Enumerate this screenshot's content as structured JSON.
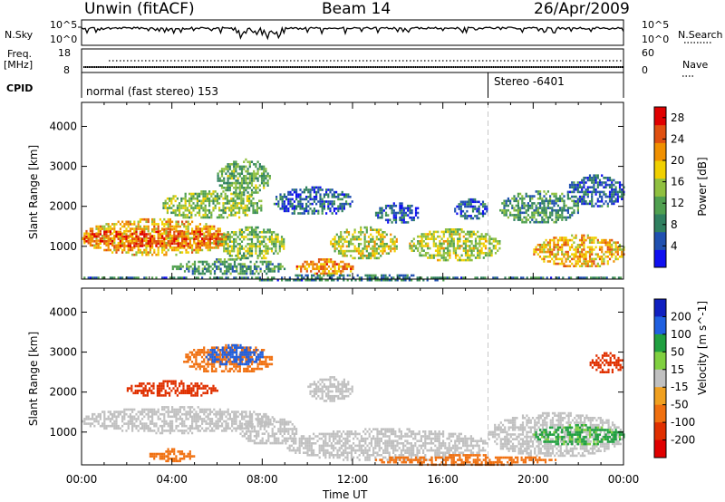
{
  "header": {
    "radar": "Unwin (fitACF)",
    "beam": "Beam 14",
    "date": "26/Apr/2009"
  },
  "status_panel": {
    "left_labels": [
      "N.Sky",
      "Freq.",
      "[MHz]",
      "CPID"
    ],
    "right_labels": [
      "N.Search",
      "Nave"
    ],
    "noise_ticks": [
      "10^5",
      "10^0"
    ],
    "noise_ticks_right": [
      "10^5",
      "10^0"
    ],
    "freq_ticks": [
      "18",
      "8"
    ],
    "nave_ticks": [
      "60",
      "0"
    ],
    "cpid_texts": [
      "normal (fast stereo) 153",
      "Stereo -6401"
    ],
    "cpid_change_hour": 18.0
  },
  "chart_data": [
    {
      "type": "heatmap",
      "panel": "power",
      "ylabel": "Slant Range [km]",
      "xlabel": "",
      "xlim_hours": [
        0,
        24
      ],
      "ylim": [
        180,
        4600
      ],
      "yticks": [
        1000,
        2000,
        3000,
        4000
      ],
      "colorbar": {
        "label": "Power [dB]",
        "ticks": [
          4,
          8,
          12,
          16,
          20,
          24,
          28
        ],
        "range": [
          0,
          30
        ],
        "colors": [
          "#1010f0",
          "#2050b0",
          "#308060",
          "#50a050",
          "#90c040",
          "#f0d000",
          "#f09000",
          "#e05010",
          "#e00000"
        ]
      },
      "regions": [
        {
          "x0": 0.0,
          "x1": 6.5,
          "y0": 800,
          "y1": 1700,
          "level": 20
        },
        {
          "x0": 0.0,
          "x1": 6.5,
          "y0": 1000,
          "y1": 1450,
          "level": 24
        },
        {
          "x0": 6.0,
          "x1": 9.0,
          "y0": 700,
          "y1": 1500,
          "level": 14
        },
        {
          "x0": 3.5,
          "x1": 8.0,
          "y0": 1700,
          "y1": 2400,
          "level": 14
        },
        {
          "x0": 6.0,
          "x1": 8.3,
          "y0": 2300,
          "y1": 3200,
          "level": 12
        },
        {
          "x0": 4.0,
          "x1": 9.0,
          "y0": 300,
          "y1": 700,
          "level": 10
        },
        {
          "x0": 9.5,
          "x1": 12.0,
          "y0": 300,
          "y1": 700,
          "level": 22
        },
        {
          "x0": 11.0,
          "x1": 14.0,
          "y0": 700,
          "y1": 1500,
          "level": 16
        },
        {
          "x0": 14.5,
          "x1": 18.5,
          "y0": 650,
          "y1": 1450,
          "level": 16
        },
        {
          "x0": 8.5,
          "x1": 12.0,
          "y0": 1800,
          "y1": 2500,
          "level": 6
        },
        {
          "x0": 13.0,
          "x1": 15.0,
          "y0": 1600,
          "y1": 2100,
          "level": 6
        },
        {
          "x0": 18.5,
          "x1": 22.0,
          "y0": 1600,
          "y1": 2400,
          "level": 10
        },
        {
          "x0": 20.0,
          "x1": 24.0,
          "y0": 500,
          "y1": 1300,
          "level": 20
        },
        {
          "x0": 21.5,
          "x1": 24.0,
          "y0": 2000,
          "y1": 2800,
          "level": 6
        },
        {
          "x0": 16.5,
          "x1": 18.0,
          "y0": 1700,
          "y1": 2200,
          "level": 6
        },
        {
          "x0": 0.0,
          "x1": 24.0,
          "y0": 180,
          "y1": 300,
          "level": 8
        }
      ]
    },
    {
      "type": "heatmap",
      "panel": "velocity",
      "ylabel": "Slant Range [km]",
      "xlabel": "Time UT",
      "xlim_hours": [
        0,
        24
      ],
      "xticks": [
        "00:00",
        "04:00",
        "08:00",
        "12:00",
        "16:00",
        "20:00",
        "00:00"
      ],
      "ylim": [
        180,
        4600
      ],
      "yticks": [
        1000,
        2000,
        3000,
        4000
      ],
      "colorbar": {
        "label": "Velocity [m s^-1]",
        "ticks": [
          200,
          100,
          50,
          15,
          -15,
          -50,
          -100,
          -200
        ],
        "colors": [
          "#1020c0",
          "#2060e0",
          "#20a040",
          "#80d040",
          "#c0c0c0",
          "#f0a020",
          "#f07010",
          "#e03000",
          "#e00000"
        ]
      },
      "regions": [
        {
          "x0": 0.0,
          "x1": 8.5,
          "y0": 1000,
          "y1": 1650,
          "level": 0
        },
        {
          "x0": 2.0,
          "x1": 6.0,
          "y0": 1900,
          "y1": 2300,
          "level": -120
        },
        {
          "x0": 4.5,
          "x1": 8.5,
          "y0": 2500,
          "y1": 3200,
          "level": -60
        },
        {
          "x0": 5.5,
          "x1": 8.0,
          "y0": 2700,
          "y1": 3200,
          "level": 120
        },
        {
          "x0": 7.0,
          "x1": 9.5,
          "y0": 700,
          "y1": 1400,
          "level": 0
        },
        {
          "x0": 9.0,
          "x1": 18.0,
          "y0": 300,
          "y1": 1100,
          "level": 0
        },
        {
          "x0": 10.0,
          "x1": 12.0,
          "y0": 1800,
          "y1": 2400,
          "level": 0
        },
        {
          "x0": 18.0,
          "x1": 24.0,
          "y0": 400,
          "y1": 1500,
          "level": 0
        },
        {
          "x0": 20.0,
          "x1": 24.0,
          "y0": 700,
          "y1": 1200,
          "level": 40
        },
        {
          "x0": 22.5,
          "x1": 24.0,
          "y0": 2500,
          "y1": 3000,
          "level": -120
        },
        {
          "x0": 3.0,
          "x1": 5.0,
          "y0": 300,
          "y1": 600,
          "level": -60
        },
        {
          "x0": 13.0,
          "x1": 21.0,
          "y0": 200,
          "y1": 450,
          "level": -60
        }
      ]
    }
  ]
}
